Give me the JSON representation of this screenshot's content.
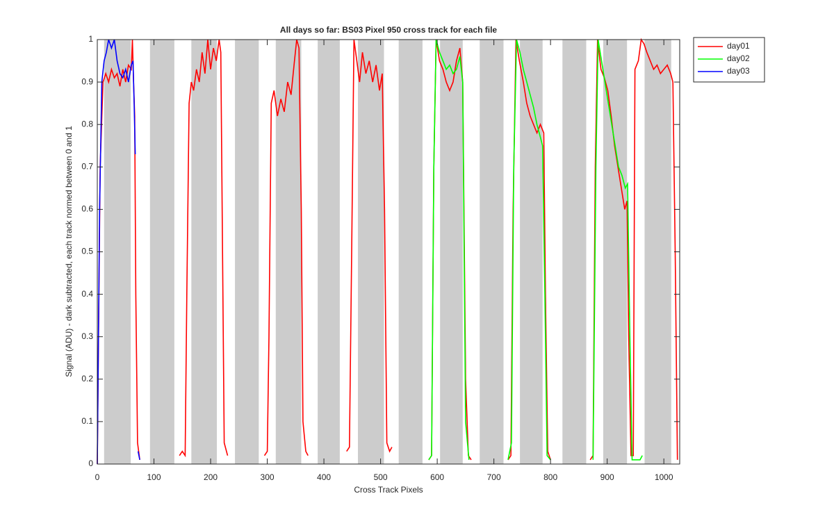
{
  "chart_data": {
    "type": "line",
    "title": "All days so far: BS03  Pixel 950 cross track for each file",
    "x_label": "Cross Track Pixels",
    "y_label": "Signal (ADU) - dark subtracted, each track normed between 0 and 1",
    "xlim": [
      0,
      1028
    ],
    "ylim": [
      0,
      1
    ],
    "xticks": [
      0,
      100,
      200,
      300,
      400,
      500,
      600,
      700,
      800,
      900,
      1000
    ],
    "yticks": [
      0,
      0.1,
      0.2,
      0.3,
      0.4,
      0.5,
      0.6,
      0.7,
      0.8,
      0.9,
      1
    ],
    "band_color": "#cccccc",
    "bands": [
      [
        12,
        59
      ],
      [
        93,
        136
      ],
      [
        166,
        211
      ],
      [
        243,
        285
      ],
      [
        315,
        360
      ],
      [
        389,
        428
      ],
      [
        460,
        506
      ],
      [
        532,
        574
      ],
      [
        605,
        645
      ],
      [
        675,
        717
      ],
      [
        746,
        786
      ],
      [
        821,
        863
      ],
      [
        893,
        935
      ],
      [
        966,
        1013
      ]
    ],
    "legend": "outside-top-right",
    "series": [
      {
        "name": "day01",
        "color": "#ff0000",
        "x": [
          0,
          5,
          10,
          15,
          20,
          25,
          30,
          35,
          40,
          45,
          50,
          55,
          60,
          62,
          64,
          66,
          68,
          71,
          75,
          100,
          145,
          150,
          155,
          158,
          162,
          166,
          170,
          175,
          180,
          185,
          190,
          195,
          200,
          205,
          210,
          215,
          218,
          221,
          224,
          230,
          260,
          295,
          300,
          303,
          307,
          312,
          318,
          324,
          330,
          336,
          342,
          348,
          352,
          356,
          360,
          363,
          368,
          372,
          400,
          440,
          445,
          449,
          453,
          458,
          463,
          468,
          474,
          480,
          486,
          492,
          498,
          503,
          507,
          511,
          516,
          520,
          550,
          585,
          590,
          594,
          598,
          604,
          610,
          616,
          622,
          628,
          634,
          640,
          645,
          650,
          655,
          660,
          690,
          725,
          730,
          734,
          739,
          745,
          752,
          758,
          764,
          770,
          776,
          782,
          788,
          791,
          795,
          800,
          840,
          870,
          875,
          879,
          883,
          889,
          895,
          901,
          907,
          913,
          919,
          925,
          931,
          935,
          938,
          942,
          946,
          949,
          955,
          960,
          965,
          970,
          976,
          982,
          988,
          994,
          1000,
          1006,
          1012,
          1016,
          1020,
          1024
        ],
        "values": [
          0,
          0.7,
          0.9,
          0.92,
          0.9,
          0.93,
          0.91,
          0.92,
          0.89,
          0.93,
          0.9,
          0.94,
          0.93,
          1,
          0.9,
          0.82,
          0.4,
          0.05,
          0.01,
          null,
          0.02,
          0.03,
          0.02,
          0.4,
          0.85,
          0.9,
          0.88,
          0.93,
          0.9,
          0.97,
          0.92,
          1,
          0.93,
          0.98,
          0.95,
          1,
          0.97,
          0.5,
          0.05,
          0.02,
          null,
          0.02,
          0.03,
          0.3,
          0.85,
          0.88,
          0.82,
          0.86,
          0.83,
          0.9,
          0.87,
          0.95,
          1,
          0.98,
          0.6,
          0.1,
          0.03,
          0.02,
          null,
          0.03,
          0.04,
          0.5,
          1,
          0.95,
          0.9,
          0.97,
          0.92,
          0.95,
          0.9,
          0.94,
          0.88,
          0.92,
          0.6,
          0.05,
          0.03,
          0.04,
          null,
          0.01,
          0.02,
          0.7,
          1,
          0.95,
          0.93,
          0.9,
          0.88,
          0.9,
          0.95,
          0.98,
          0.9,
          0.2,
          0.02,
          0.01,
          null,
          0.01,
          0.02,
          0.6,
          1,
          0.95,
          0.9,
          0.85,
          0.82,
          0.8,
          0.78,
          0.8,
          0.78,
          0.4,
          0.03,
          0.01,
          null,
          0.01,
          0.02,
          0.7,
          1,
          0.93,
          0.91,
          0.88,
          0.82,
          0.75,
          0.7,
          0.65,
          0.6,
          0.62,
          0.3,
          0.02,
          0.02,
          0.93,
          0.95,
          1,
          0.99,
          0.97,
          0.95,
          0.93,
          0.94,
          0.92,
          0.93,
          0.94,
          0.92,
          0.9,
          0.5,
          0.01
        ]
      },
      {
        "name": "day02",
        "color": "#00ff00",
        "x": [
          585,
          590,
          594,
          598,
          604,
          610,
          616,
          622,
          628,
          634,
          640,
          645,
          650,
          656,
          690,
          725,
          731,
          735,
          740,
          746,
          752,
          758,
          764,
          770,
          776,
          782,
          786,
          790,
          794,
          800,
          840,
          875,
          880,
          884,
          890,
          896,
          902,
          908,
          914,
          920,
          926,
          932,
          936,
          940,
          944,
          950,
          958,
          962
        ],
        "values": [
          0.01,
          0.02,
          0.7,
          1,
          0.97,
          0.95,
          0.93,
          0.94,
          0.92,
          0.93,
          0.96,
          0.9,
          0.1,
          0.01,
          null,
          0.01,
          0.05,
          0.7,
          1,
          0.97,
          0.93,
          0.9,
          0.87,
          0.84,
          0.8,
          0.77,
          0.75,
          0.4,
          0.02,
          0.01,
          null,
          0.01,
          0.7,
          1,
          0.95,
          0.9,
          0.85,
          0.8,
          0.75,
          0.7,
          0.68,
          0.65,
          0.66,
          0.3,
          0.01,
          0.01,
          0.01,
          0.02
        ]
      },
      {
        "name": "day03",
        "color": "#0000ff",
        "x": [
          0,
          4,
          8,
          12,
          16,
          20,
          25,
          30,
          35,
          40,
          45,
          50,
          55,
          60,
          63,
          65,
          67,
          70,
          72,
          75
        ],
        "values": [
          0,
          0.6,
          0.9,
          0.95,
          0.97,
          1,
          0.98,
          1,
          0.95,
          0.92,
          0.91,
          0.93,
          0.9,
          0.94,
          0.95,
          0.85,
          0.73,
          null,
          0.03,
          0.01
        ]
      }
    ]
  }
}
